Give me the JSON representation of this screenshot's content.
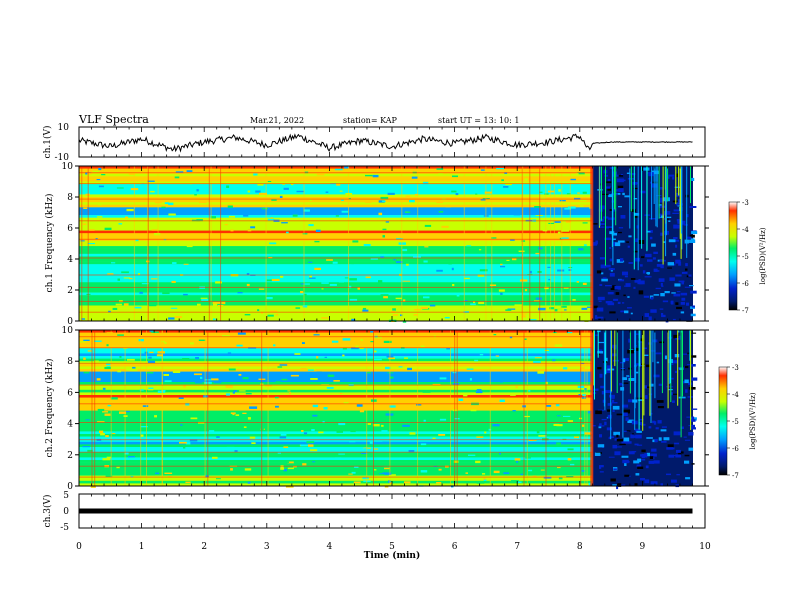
{
  "header": {
    "title": "VLF Spectra",
    "date": "Mar.21, 2022",
    "station": "station= KAP",
    "start": "start  UT =  13: 10: 1"
  },
  "colors": {
    "spectrum": [
      "#000000",
      "#001a6b",
      "#0022cc",
      "#00a0ff",
      "#00ffee",
      "#00ee66",
      "#c8ff00",
      "#ffd000",
      "#ff3000",
      "#ffffff"
    ],
    "trace": "#000000"
  },
  "chart_data": [
    {
      "type": "line",
      "panel": "ch1-waveform",
      "ylabel": "ch.1(V)",
      "ylim": [
        -10,
        10
      ],
      "ytick_labels": [
        "10",
        "-10"
      ],
      "xlim": [
        0,
        10
      ],
      "note_series": "waveform fluctuates +/-6 V until ~8.2 min then flattens near 0 V",
      "x": [
        0,
        0.5,
        1,
        1.5,
        2,
        2.5,
        3,
        3.5,
        4,
        4.5,
        5,
        5.5,
        6,
        6.5,
        7,
        7.5,
        8,
        8.15,
        8.2,
        8.5,
        9,
        9.5,
        9.8
      ],
      "y": [
        1,
        -3,
        2,
        -5,
        0,
        3,
        -2,
        4,
        -4,
        1,
        -3,
        2,
        -1,
        3,
        -2,
        0,
        4,
        -6,
        -1,
        0,
        0,
        0,
        0
      ]
    },
    {
      "type": "heatmap",
      "panel": "ch1-spectrogram",
      "ylabel": "ch.1 Frequency (kHz)",
      "ylim": [
        0,
        10
      ],
      "yticks": [
        "0",
        "2",
        "4",
        "6",
        "8",
        "10"
      ],
      "xlim": [
        0,
        10
      ],
      "colorbar": {
        "label": "log(PSD)(V²/Hz)",
        "range": [
          -7,
          -3
        ],
        "tick_labels": [
          "-3",
          "-4",
          "-5",
          "-6",
          "-7"
        ]
      },
      "transition_min": 8.2
    },
    {
      "type": "heatmap",
      "panel": "ch2-spectrogram",
      "ylabel": "ch.2 Frequency (kHz)",
      "ylim": [
        0,
        10
      ],
      "yticks": [
        "0",
        "2",
        "4",
        "6",
        "8",
        "10"
      ],
      "xlim": [
        0,
        10
      ],
      "colorbar": {
        "label": "log(PSD)(V²/Hz)",
        "range": [
          -7,
          -3
        ],
        "tick_labels": [
          "-3",
          "-4",
          "-5",
          "-6",
          "-7"
        ]
      },
      "transition_min": 8.2
    },
    {
      "type": "line",
      "panel": "ch3-waveform",
      "ylabel": "ch.3(V)",
      "ylim": [
        -5,
        5
      ],
      "ytick_labels": [
        "5",
        "0",
        "-5"
      ],
      "xlim": [
        0,
        10
      ],
      "x": [
        0,
        9.8
      ],
      "y": [
        0,
        0
      ]
    }
  ],
  "xaxis": {
    "label": "Time  (min)",
    "tick_labels": [
      "0",
      "1",
      "2",
      "3",
      "4",
      "5",
      "6",
      "7",
      "8",
      "9",
      "10"
    ]
  }
}
